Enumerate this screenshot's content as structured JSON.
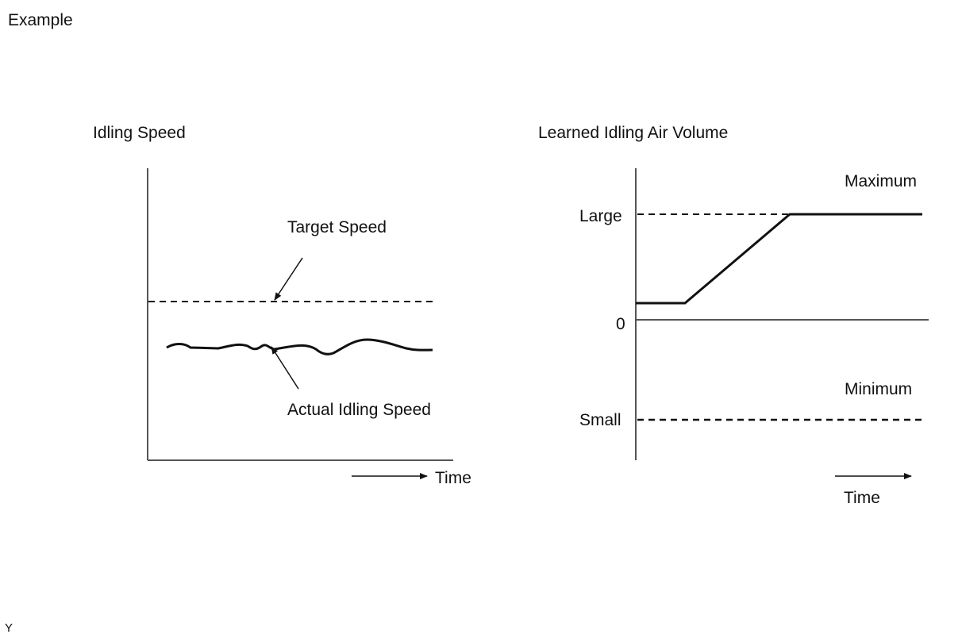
{
  "page_label": "Example",
  "footer_code": "Y",
  "left_chart": {
    "title": "Idling Speed",
    "target_label": "Target Speed",
    "actual_label": "Actual Idling Speed",
    "time_label": "Time"
  },
  "right_chart": {
    "title": "Learned Idling Air Volume",
    "large_label": "Large",
    "zero_label": "0",
    "small_label": "Small",
    "maximum_label": "Maximum",
    "minimum_label": "Minimum",
    "time_label": "Time"
  },
  "colors": {
    "line": "#111111",
    "axis": "#555555"
  }
}
